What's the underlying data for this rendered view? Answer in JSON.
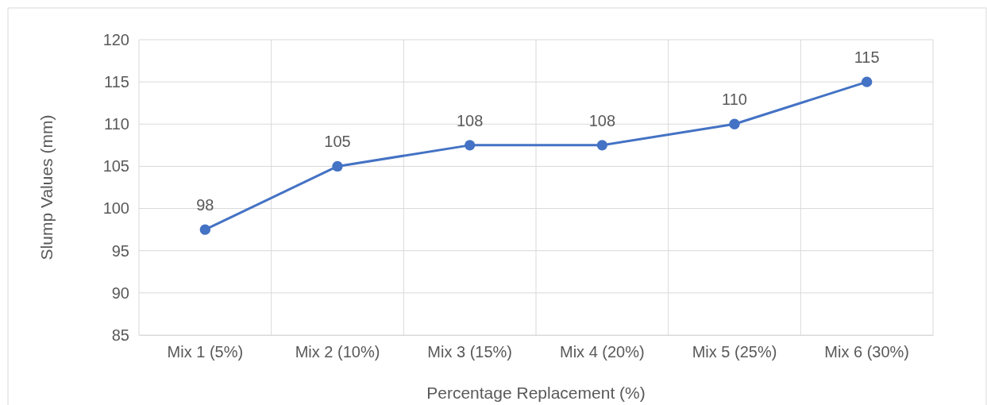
{
  "chart_data": {
    "type": "line",
    "xlabel": "Percentage Replacement (%)",
    "ylabel": "Slump Values (mm)",
    "categories": [
      "Mix 1 (5%)",
      "Mix 2 (10%)",
      "Mix 3 (15%)",
      "Mix 4 (20%)",
      "Mix 5 (25%)",
      "Mix 6 (30%)"
    ],
    "values": [
      97.5,
      105,
      107.5,
      107.5,
      110,
      115
    ],
    "value_labels": [
      "98",
      "105",
      "108",
      "108",
      "110",
      "115"
    ],
    "color": "#4472c4",
    "ylim": [
      85,
      120
    ],
    "yticks": [
      85,
      90,
      95,
      100,
      105,
      110,
      115,
      120
    ],
    "grid": true,
    "marker": "circle",
    "line_style": "solid"
  }
}
